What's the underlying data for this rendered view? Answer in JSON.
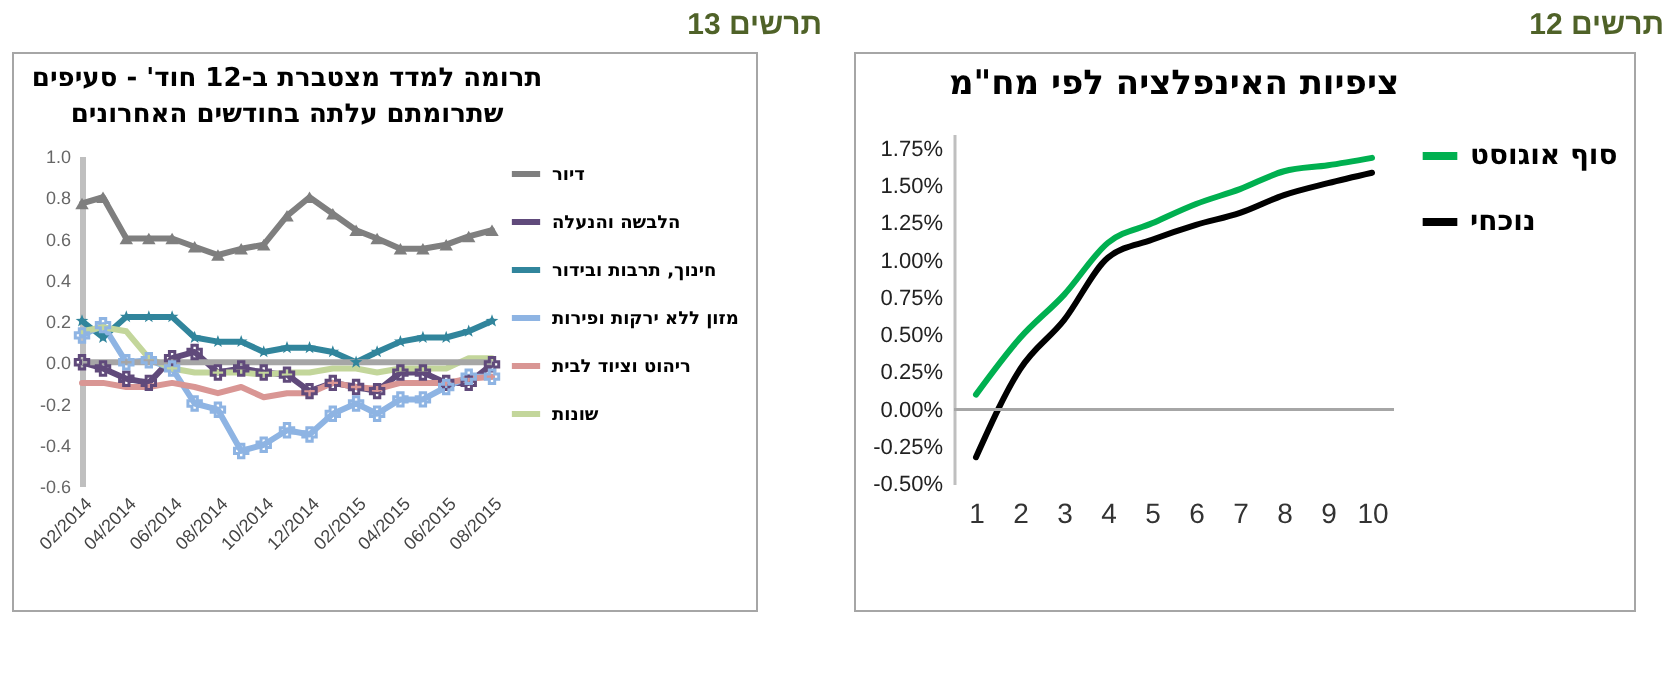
{
  "chart_data": [
    {
      "type": "line",
      "title": "ציפיות האינפלציה לפי מח\"מ",
      "annotations": [
        "תרשים 12"
      ],
      "categories": [
        "1",
        "2",
        "3",
        "4",
        "5",
        "6",
        "7",
        "8",
        "9",
        "10"
      ],
      "series": [
        {
          "name": "סוף אוגוסט",
          "color": "#00b050",
          "values": [
            0.1,
            0.48,
            0.77,
            1.12,
            1.25,
            1.38,
            1.48,
            1.6,
            1.64,
            1.69
          ]
        },
        {
          "name": "נוכחי",
          "color": "#000000",
          "values": [
            -0.32,
            0.27,
            0.6,
            1.02,
            1.14,
            1.24,
            1.32,
            1.44,
            1.52,
            1.59
          ]
        }
      ],
      "ylim": [
        -0.5,
        1.85
      ],
      "yticks": [
        {
          "value": -0.5,
          "label": "-0.50%"
        },
        {
          "value": -0.25,
          "label": "-0.25%"
        },
        {
          "value": 0,
          "label": "0.00%"
        },
        {
          "value": 0.25,
          "label": "0.25%"
        },
        {
          "value": 0.5,
          "label": "0.50%"
        },
        {
          "value": 0.75,
          "label": "0.75%"
        },
        {
          "value": 1,
          "label": "1.00%"
        },
        {
          "value": 1.25,
          "label": "1.25%"
        },
        {
          "value": 1.5,
          "label": "1.50%"
        },
        {
          "value": 1.75,
          "label": "1.75%"
        }
      ],
      "ref_lines": [
        {
          "axis": "y",
          "value": 0,
          "color": "#a6a6a6"
        }
      ],
      "legend": "right",
      "grid": false,
      "marker": "none"
    },
    {
      "type": "line",
      "title": "תרומה למדד מצטברת ב-12 חוד' - סעיפים\nשתרומתם עלתה בחודשים האחרונים",
      "annotations": [
        "תרשים 13"
      ],
      "x": [
        "2014-02",
        "2014-03",
        "2014-04",
        "2014-05",
        "2014-06",
        "2014-07",
        "2014-08",
        "2014-09",
        "2014-10",
        "2014-11",
        "2014-12",
        "2015-01",
        "2015-02",
        "2015-03",
        "2015-04",
        "2015-05",
        "2015-06",
        "2015-07",
        "2015-08"
      ],
      "series": [
        {
          "name": "דיור",
          "color": "#7f7f7f",
          "marker": "triangle",
          "values": [
            0.77,
            0.8,
            0.6,
            0.6,
            0.6,
            0.56,
            0.52,
            0.55,
            0.57,
            0.71,
            0.8,
            0.72,
            0.64,
            0.6,
            0.55,
            0.55,
            0.57,
            0.61,
            0.64
          ]
        },
        {
          "name": "הלבשה והנעלה",
          "color": "#604a7b",
          "marker": "cross",
          "values": [
            0.0,
            -0.03,
            -0.08,
            -0.1,
            0.02,
            0.05,
            -0.05,
            -0.03,
            -0.05,
            -0.06,
            -0.14,
            -0.1,
            -0.12,
            -0.14,
            -0.05,
            -0.05,
            -0.1,
            -0.1,
            -0.01
          ]
        },
        {
          "name": "חינוך, תרבות ובידור",
          "color": "#31859c",
          "marker": "star",
          "values": [
            0.2,
            0.12,
            0.22,
            0.22,
            0.22,
            0.12,
            0.1,
            0.1,
            0.05,
            0.07,
            0.07,
            0.05,
            0.0,
            0.05,
            0.1,
            0.12,
            0.12,
            0.15,
            0.2
          ]
        },
        {
          "name": "מזון ללא ירקות ופירות",
          "color": "#8eb4e3",
          "marker": "cross",
          "values": [
            0.13,
            0.18,
            0.0,
            0.01,
            -0.03,
            -0.2,
            -0.23,
            -0.43,
            -0.4,
            -0.33,
            -0.35,
            -0.25,
            -0.2,
            -0.25,
            -0.18,
            -0.18,
            -0.12,
            -0.07,
            -0.07
          ]
        },
        {
          "name": "ריהוט וציוד לבית",
          "color": "#d99694",
          "marker": "none",
          "values": [
            -0.1,
            -0.1,
            -0.12,
            -0.12,
            -0.1,
            -0.12,
            -0.15,
            -0.12,
            -0.17,
            -0.15,
            -0.15,
            -0.1,
            -0.12,
            -0.13,
            -0.1,
            -0.1,
            -0.1,
            -0.08,
            -0.07
          ]
        },
        {
          "name": "שונות",
          "color": "#c3d69b",
          "marker": "none",
          "values": [
            0.15,
            0.17,
            0.15,
            0.02,
            -0.03,
            -0.05,
            -0.05,
            -0.05,
            -0.06,
            -0.05,
            -0.05,
            -0.03,
            -0.03,
            -0.05,
            -0.03,
            -0.03,
            -0.03,
            0.02,
            0.02
          ]
        }
      ],
      "xlim": [
        "2014-02",
        "2015-08"
      ],
      "xticks": [
        {
          "value": "2014-02",
          "label": "02/2014"
        },
        {
          "value": "2014-04",
          "label": "04/2014"
        },
        {
          "value": "2014-06",
          "label": "06/2014"
        },
        {
          "value": "2014-08",
          "label": "08/2014"
        },
        {
          "value": "2014-10",
          "label": "10/2014"
        },
        {
          "value": "2014-12",
          "label": "12/2014"
        },
        {
          "value": "2015-02",
          "label": "02/2015"
        },
        {
          "value": "2015-04",
          "label": "04/2015"
        },
        {
          "value": "2015-06",
          "label": "06/2015"
        },
        {
          "value": "2015-08",
          "label": "08/2015"
        }
      ],
      "ylim": [
        -0.6,
        1.0
      ],
      "yticks": [
        {
          "value": -0.6,
          "label": "-0.6"
        },
        {
          "value": -0.4,
          "label": "-0.4"
        },
        {
          "value": -0.2,
          "label": "-0.2"
        },
        {
          "value": 0,
          "label": "0.0"
        },
        {
          "value": 0.2,
          "label": "0.2"
        },
        {
          "value": 0.4,
          "label": "0.4"
        },
        {
          "value": 0.6,
          "label": "0.6"
        },
        {
          "value": 0.8,
          "label": "0.8"
        },
        {
          "value": 1.0,
          "label": "1.0"
        }
      ],
      "ref_lines": [
        {
          "axis": "y",
          "value": 0,
          "color": "#a6a6a6"
        }
      ],
      "legend": "right",
      "grid": false
    }
  ]
}
